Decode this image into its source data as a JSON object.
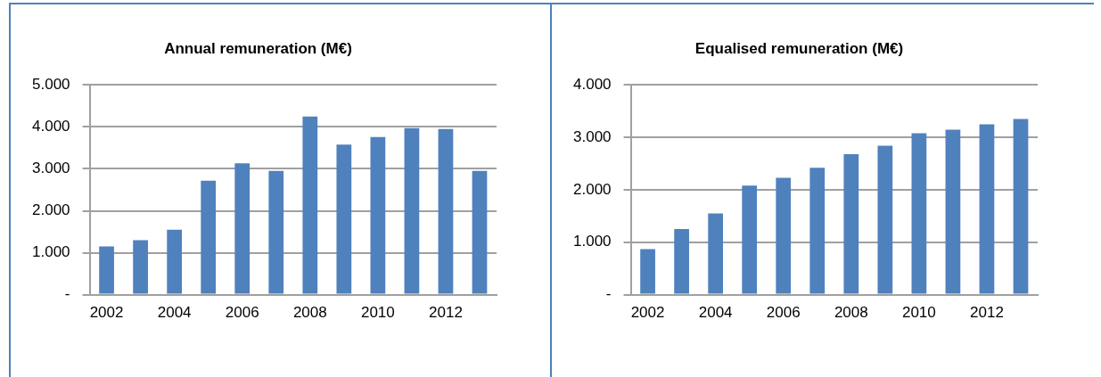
{
  "chart_data": [
    {
      "type": "bar",
      "title": "Annual remuneration (M€)",
      "categories": [
        "2002",
        null,
        "2004",
        null,
        "2006",
        null,
        "2008",
        null,
        "2010",
        null,
        "2012",
        null
      ],
      "values": [
        1150,
        1300,
        1550,
        2720,
        3130,
        2950,
        4250,
        3580,
        3760,
        3970,
        3950,
        2950
      ],
      "color": "#4f81bd",
      "ylim": [
        0,
        5000
      ],
      "yticks": [
        {
          "value": 0,
          "label": "-"
        },
        {
          "value": 1000,
          "label": "1.000"
        },
        {
          "value": 2000,
          "label": "2.000"
        },
        {
          "value": 3000,
          "label": "3.000"
        },
        {
          "value": 4000,
          "label": "4.000"
        },
        {
          "value": 5000,
          "label": "5.000"
        }
      ],
      "grid": "y",
      "legend": false
    },
    {
      "type": "bar",
      "title": "Equalised remuneration (M€)",
      "categories": [
        "2002",
        null,
        "2004",
        null,
        "2006",
        null,
        "2008",
        null,
        "2010",
        null,
        "2012",
        null
      ],
      "values": [
        870,
        1250,
        1550,
        2080,
        2230,
        2420,
        2680,
        2840,
        3080,
        3150,
        3250,
        3350
      ],
      "color": "#4f81bd",
      "ylim": [
        0,
        4000
      ],
      "yticks": [
        {
          "value": 0,
          "label": "-"
        },
        {
          "value": 1000,
          "label": "1.000"
        },
        {
          "value": 2000,
          "label": "2.000"
        },
        {
          "value": 3000,
          "label": "3.000"
        },
        {
          "value": 4000,
          "label": "4.000"
        }
      ],
      "grid": "y",
      "legend": false
    }
  ]
}
